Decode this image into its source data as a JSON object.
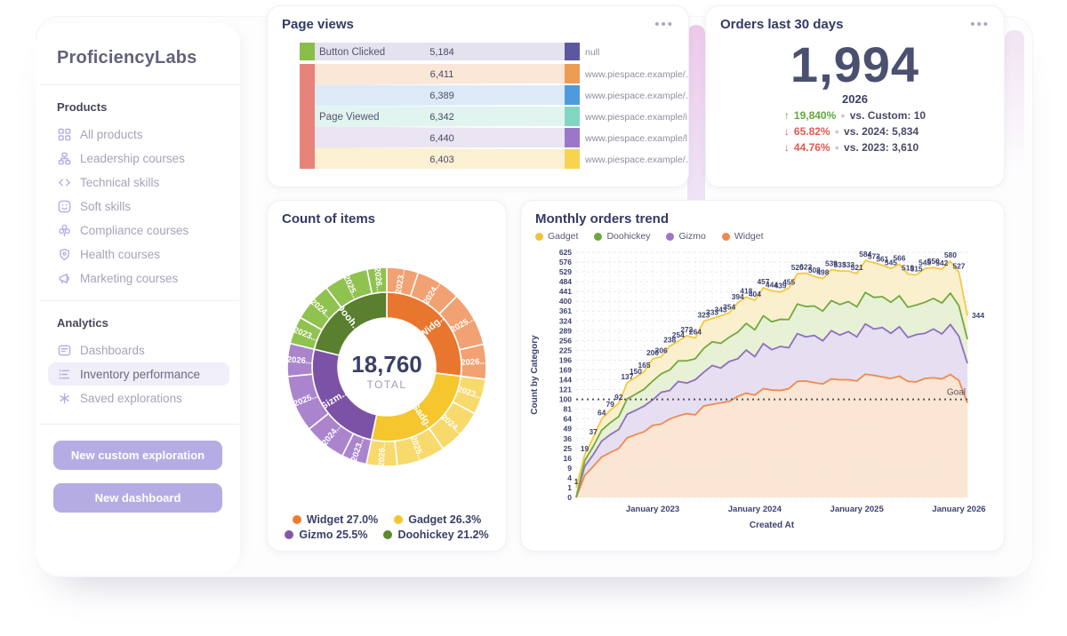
{
  "brand": {
    "name": "ProficiencyLabs"
  },
  "sidebar": {
    "products_heading": "Products",
    "product_items": [
      {
        "icon": "grid-icon",
        "label": "All products"
      },
      {
        "icon": "org-icon",
        "label": "Leadership courses"
      },
      {
        "icon": "code-icon",
        "label": "Technical skills"
      },
      {
        "icon": "smile-icon",
        "label": "Soft skills"
      },
      {
        "icon": "clover-icon",
        "label": "Compliance courses"
      },
      {
        "icon": "shield-icon",
        "label": "Health courses"
      },
      {
        "icon": "megaphone-icon",
        "label": "Marketing courses"
      }
    ],
    "analytics_heading": "Analytics",
    "analytics_items": [
      {
        "icon": "dashboard-icon",
        "label": "Dashboards",
        "active": false
      },
      {
        "icon": "bars-icon",
        "label": "Inventory performance",
        "active": true
      },
      {
        "icon": "spark-icon",
        "label": "Saved explorations",
        "active": false
      }
    ],
    "buttons": [
      {
        "label": "New custom exploration"
      },
      {
        "label": "New dashboard"
      }
    ]
  },
  "page_views": {
    "title": "Page views",
    "menu_icon": "ellipsis-icon",
    "chart_data": {
      "type": "sankey",
      "sources": [
        {
          "label": "Button Clicked",
          "color": "#8BBD4A"
        },
        {
          "label": "Page Viewed",
          "color": "#E8837B"
        }
      ],
      "flows": [
        {
          "from": "Button Clicked",
          "to": "null",
          "value": 5184,
          "display": "5,184",
          "band": "#E3E2EE",
          "node": "#5C58A0"
        },
        {
          "from": "Page Viewed",
          "to": "www.piespace.example/…",
          "value": 6411,
          "display": "6,411",
          "band": "#FBE7D7",
          "node": "#EE9C55"
        },
        {
          "from": "Page Viewed",
          "to": "www.piespace.example/…",
          "value": 6389,
          "display": "6,389",
          "band": "#DCEAF8",
          "node": "#4E9BDC"
        },
        {
          "from": "Page Viewed",
          "to": "www.piespace.example/i…",
          "value": 6342,
          "display": "6,342",
          "band": "#E2F4F0",
          "node": "#80D6C3"
        },
        {
          "from": "Page Viewed",
          "to": "www.piespace.example/l…",
          "value": 6440,
          "display": "6,440",
          "band": "#EAE4F3",
          "node": "#9B77C8"
        },
        {
          "from": "Page Viewed",
          "to": "www.piespace.example/…",
          "value": 6403,
          "display": "6,403",
          "band": "#FCF0D2",
          "node": "#F6D44F"
        }
      ]
    }
  },
  "orders_card": {
    "title": "Orders last 30 days",
    "menu_icon": "ellipsis-icon",
    "value": "1,994",
    "period": "2026",
    "comparisons": [
      {
        "direction": "up",
        "arrow": "↑",
        "pct": "19,840%",
        "label": "vs. Custom: 10",
        "color": "#63A83C"
      },
      {
        "direction": "down",
        "arrow": "↓",
        "pct": "65.82%",
        "label": "vs. 2024: 5,834",
        "color": "#DE5950"
      },
      {
        "direction": "down",
        "arrow": "↓",
        "pct": "44.76%",
        "label": "vs. 2023: 3,610",
        "color": "#DE5950"
      }
    ]
  },
  "count_of_items": {
    "title": "Count of items",
    "center_value": "18,760",
    "center_label": "TOTAL",
    "chart_data": {
      "type": "sunburst",
      "total": 18760,
      "segments": [
        {
          "name": "Widget",
          "pct": 27.0,
          "color": "#E9762E",
          "tint": "#F2A172",
          "inner_label": "Widg...",
          "years": [
            {
              "label": "2023...",
              "share": 0.19
            },
            {
              "label": "2024...",
              "share": 0.27
            },
            {
              "label": "2025...",
              "share": 0.33
            },
            {
              "label": "2026...",
              "share": 0.21
            }
          ]
        },
        {
          "name": "Gadget",
          "pct": 26.3,
          "color": "#F5C62E",
          "tint": "#F8D96B",
          "inner_label": "Gadg...",
          "years": [
            {
              "label": "2023...",
              "share": 0.22
            },
            {
              "label": "2024...",
              "share": 0.29
            },
            {
              "label": "2025...",
              "share": 0.3
            },
            {
              "label": "2026...",
              "share": 0.19
            }
          ]
        },
        {
          "name": "Gizmo",
          "pct": 25.5,
          "color": "#7C52A6",
          "tint": "#AA85CD",
          "inner_label": "Gizm...",
          "years": [
            {
              "label": "2023...",
              "share": 0.16
            },
            {
              "label": "2024...",
              "share": 0.27
            },
            {
              "label": "2025...",
              "share": 0.36
            },
            {
              "label": "2026...",
              "share": 0.21
            }
          ]
        },
        {
          "name": "Doohickey",
          "pct": 21.2,
          "color": "#597F2F",
          "tint": "#90C250",
          "inner_label": "Dooh...",
          "years": [
            {
              "label": "2023...",
              "share": 0.21
            },
            {
              "label": "2024...",
              "share": 0.3
            },
            {
              "label": "2025...",
              "share": 0.34
            },
            {
              "label": "2026...",
              "share": 0.15
            }
          ]
        }
      ],
      "legend": [
        {
          "name": "Widget",
          "pct_display": "27.0%",
          "color": "#ED7D2F"
        },
        {
          "name": "Gadget",
          "pct_display": "26.3%",
          "color": "#F5C62E"
        },
        {
          "name": "Gizmo",
          "pct_display": "25.5%",
          "color": "#8456A8"
        },
        {
          "name": "Doohickey",
          "pct_display": "21.2%",
          "color": "#5A8A2E"
        }
      ]
    }
  },
  "monthly_trend": {
    "title": "Monthly orders trend",
    "legend": [
      {
        "name": "Gadget",
        "color": "#F2C23B"
      },
      {
        "name": "Doohickey",
        "color": "#6BA83F"
      },
      {
        "name": "Gizmo",
        "color": "#9B77C8"
      },
      {
        "name": "Widget",
        "color": "#EE8A50"
      }
    ],
    "chart_data": {
      "type": "area",
      "stacked": true,
      "y_scale": "sqrt",
      "xlabel": "Created At",
      "ylabel": "Count by Category",
      "x_tick_labels": [
        "January 2023",
        "January 2024",
        "January 2025",
        "January 2026"
      ],
      "x_tick_indices": [
        9,
        21,
        33,
        45
      ],
      "y_ticks": [
        0,
        1,
        4,
        9,
        16,
        25,
        36,
        49,
        64,
        81,
        100,
        121,
        144,
        169,
        196,
        225,
        256,
        289,
        324,
        361,
        400,
        441,
        484,
        529,
        576,
        625
      ],
      "ylim": [
        0,
        625
      ],
      "grid": true,
      "goal": {
        "value": 100,
        "label": "Goal"
      },
      "series": [
        {
          "name": "Widget",
          "color": "#EE8A50",
          "fill": "#FBE4D0",
          "values": [
            0,
            5,
            10,
            17,
            21,
            25,
            37,
            41,
            45,
            54,
            56,
            64,
            69,
            73,
            71,
            87,
            90,
            93,
            96,
            106,
            113,
            109,
            123,
            120,
            119,
            123,
            140,
            141,
            137,
            134,
            146,
            144,
            144,
            141,
            158,
            155,
            151,
            147,
            153,
            140,
            139,
            147,
            149,
            146,
            157,
            142,
            93
          ]
        },
        {
          "name": "Gizmo",
          "color": "#8E6FBE",
          "fill": "#E4DBF0",
          "values": [
            0,
            5,
            9,
            16,
            20,
            23,
            35,
            38,
            42,
            45,
            59,
            55,
            71,
            63,
            73,
            76,
            91,
            81,
            96,
            94,
            113,
            97,
            123,
            107,
            118,
            110,
            139,
            127,
            136,
            121,
            143,
            130,
            142,
            127,
            155,
            140,
            149,
            133,
            150,
            126,
            137,
            133,
            146,
            132,
            154,
            128,
            94
          ]
        },
        {
          "name": "Doohickey",
          "color": "#74A841",
          "fill": "#E4F0D2",
          "values": [
            0,
            4,
            8,
            14,
            17,
            20,
            29,
            32,
            35,
            42,
            44,
            50,
            54,
            58,
            56,
            68,
            71,
            73,
            75,
            84,
            89,
            86,
            97,
            94,
            93,
            96,
            110,
            111,
            108,
            106,
            114,
            113,
            113,
            110,
            124,
            121,
            119,
            116,
            120,
            110,
            109,
            116,
            117,
            115,
            123,
            112,
            73
          ]
        },
        {
          "name": "Gadget",
          "color": "#F5C843",
          "fill": "#FAEFC9",
          "values": [
            1,
            5,
            10,
            17,
            21,
            24,
            36,
            39,
            43,
            59,
            47,
            69,
            60,
            78,
            64,
            92,
            81,
            96,
            87,
            110,
            103,
            112,
            114,
            123,
            109,
            126,
            131,
            144,
            127,
            137,
            136,
            146,
            134,
            143,
            147,
            157,
            142,
            149,
            143,
            143,
            130,
            149,
            138,
            149,
            146,
            145,
            84
          ]
        }
      ],
      "totals": [
        1,
        19,
        37,
        64,
        79,
        92,
        137,
        150,
        165,
        200,
        206,
        238,
        254,
        272,
        264,
        323,
        333,
        343,
        354,
        394,
        418,
        404,
        457,
        444,
        439,
        455,
        520,
        523,
        508,
        498,
        539,
        533,
        533,
        521,
        584,
        573,
        561,
        545,
        566,
        519,
        515,
        545,
        550,
        542,
        580,
        527,
        344
      ]
    }
  }
}
